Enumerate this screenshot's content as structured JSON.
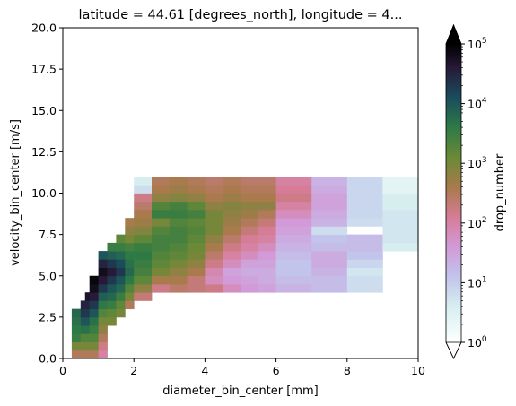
{
  "chart_data": {
    "type": "heatmap",
    "title": "latitude = 44.61 [degrees_north], longitude = 4...",
    "xlabel": "diameter_bin_center [mm]",
    "ylabel": "velocity_bin_center [m/s]",
    "xlim": [
      0,
      10
    ],
    "ylim": [
      0,
      20
    ],
    "xticks": [
      0,
      2,
      4,
      6,
      8,
      10
    ],
    "xtick_labels": [
      "0",
      "2",
      "4",
      "6",
      "8",
      "10"
    ],
    "yticks": [
      0,
      2.5,
      5,
      7.5,
      10,
      12.5,
      15,
      17.5,
      20
    ],
    "ytick_labels": [
      "0.0",
      "2.5",
      "5.0",
      "7.5",
      "10.0",
      "12.5",
      "15.0",
      "17.5",
      "20.0"
    ],
    "colorbar": {
      "label": "drop_number",
      "scale": "log",
      "range": [
        1,
        100000
      ],
      "extend": "both",
      "tick_labels": [
        {
          "base": "10",
          "exp": "0"
        },
        {
          "base": "10",
          "exp": "1"
        },
        {
          "base": "10",
          "exp": "2"
        },
        {
          "base": "10",
          "exp": "3"
        },
        {
          "base": "10",
          "exp": "4"
        },
        {
          "base": "10",
          "exp": "5"
        }
      ],
      "colormap_stops": [
        {
          "t": 0.0,
          "color": "#ffffff"
        },
        {
          "t": 0.12,
          "color": "#d6eef0"
        },
        {
          "t": 0.22,
          "color": "#c2c4ec"
        },
        {
          "t": 0.32,
          "color": "#d29ad8"
        },
        {
          "t": 0.42,
          "color": "#d67c96"
        },
        {
          "t": 0.52,
          "color": "#a87a4c"
        },
        {
          "t": 0.62,
          "color": "#6a8a36"
        },
        {
          "t": 0.72,
          "color": "#2e7a46"
        },
        {
          "t": 0.82,
          "color": "#1a4c5c"
        },
        {
          "t": 0.92,
          "color": "#261a38"
        },
        {
          "t": 1.0,
          "color": "#000000"
        }
      ]
    },
    "cells": [
      [
        0.25,
        0.25,
        2.5
      ],
      [
        0.25,
        0.75,
        3
      ],
      [
        0.25,
        1.25,
        3.5
      ],
      [
        0.25,
        1.75,
        3.6
      ],
      [
        0.25,
        2.25,
        3.7
      ],
      [
        0.25,
        2.75,
        3.8
      ],
      [
        0.5,
        0.25,
        2.5
      ],
      [
        0.5,
        0.75,
        3
      ],
      [
        0.5,
        1.25,
        3.3
      ],
      [
        0.5,
        1.75,
        3.7
      ],
      [
        0.5,
        2.25,
        4
      ],
      [
        0.5,
        2.75,
        4.3
      ],
      [
        0.5,
        3.25,
        4.5
      ],
      [
        0.625,
        3.25,
        4.5
      ],
      [
        0.625,
        3.75,
        4.7
      ],
      [
        0.75,
        0.25,
        2.5
      ],
      [
        0.75,
        0.75,
        3
      ],
      [
        0.75,
        1.25,
        3.3
      ],
      [
        0.75,
        1.75,
        3.5
      ],
      [
        0.75,
        2.25,
        3.7
      ],
      [
        0.75,
        2.75,
        4
      ],
      [
        0.75,
        3.25,
        4.3
      ],
      [
        0.75,
        3.75,
        4.6
      ],
      [
        0.75,
        4.25,
        4.8
      ],
      [
        0.75,
        4.75,
        4.9
      ],
      [
        1,
        0.25,
        2
      ],
      [
        1,
        0.75,
        2.2
      ],
      [
        1,
        1.25,
        2.5
      ],
      [
        1,
        1.75,
        2.8
      ],
      [
        1,
        2.25,
        3
      ],
      [
        1,
        2.75,
        3.3
      ],
      [
        1,
        3.25,
        3.6
      ],
      [
        1,
        3.75,
        3.9
      ],
      [
        1,
        4.25,
        4.3
      ],
      [
        1,
        4.75,
        4.6
      ],
      [
        1,
        5.25,
        4.8
      ],
      [
        1,
        5.75,
        4.5
      ],
      [
        1,
        6.25,
        4
      ],
      [
        1.25,
        2.25,
        3
      ],
      [
        1.25,
        2.75,
        3.2
      ],
      [
        1.25,
        3.25,
        3.5
      ],
      [
        1.25,
        3.75,
        3.8
      ],
      [
        1.25,
        4.25,
        4
      ],
      [
        1.25,
        4.75,
        4.3
      ],
      [
        1.25,
        5.25,
        4.6
      ],
      [
        1.25,
        5.75,
        4.3
      ],
      [
        1.25,
        6.25,
        3.9
      ],
      [
        1.25,
        6.75,
        3.5
      ],
      [
        1.5,
        2.75,
        3
      ],
      [
        1.5,
        3.25,
        3.2
      ],
      [
        1.5,
        3.75,
        3.5
      ],
      [
        1.5,
        4.25,
        3.8
      ],
      [
        1.5,
        4.75,
        4
      ],
      [
        1.5,
        5.25,
        4.3
      ],
      [
        1.5,
        5.75,
        4.1
      ],
      [
        1.5,
        6.25,
        3.8
      ],
      [
        1.5,
        6.75,
        3.5
      ],
      [
        1.5,
        7.25,
        3.2
      ],
      [
        1.75,
        3.25,
        2.5
      ],
      [
        1.75,
        3.75,
        3
      ],
      [
        1.75,
        4.25,
        3.3
      ],
      [
        1.75,
        4.75,
        3.6
      ],
      [
        1.75,
        5.25,
        3.8
      ],
      [
        1.75,
        5.75,
        3.7
      ],
      [
        1.75,
        6.25,
        3.6
      ],
      [
        1.75,
        6.75,
        3.4
      ],
      [
        1.75,
        7.25,
        3
      ],
      [
        1.75,
        7.75,
        2.8
      ],
      [
        1.75,
        8.25,
        2.6
      ],
      [
        2,
        3.75,
        2.3
      ],
      [
        2,
        4.25,
        2.8
      ],
      [
        2,
        4.75,
        3.2
      ],
      [
        2,
        5.25,
        3.4
      ],
      [
        2,
        5.75,
        3.5
      ],
      [
        2,
        6.25,
        3.6
      ],
      [
        2,
        6.75,
        3.5
      ],
      [
        2,
        7.25,
        3.2
      ],
      [
        2,
        7.75,
        2.9
      ],
      [
        2,
        8.25,
        2.7
      ],
      [
        2,
        8.75,
        2.6
      ],
      [
        2,
        9.25,
        2.4
      ],
      [
        2,
        9.75,
        2.2
      ],
      [
        2,
        10.25,
        0.8
      ],
      [
        2,
        10.75,
        0.6
      ],
      [
        2.5,
        4.25,
        2.2
      ],
      [
        2.5,
        4.75,
        2.6
      ],
      [
        2.5,
        5.25,
        3
      ],
      [
        2.5,
        5.75,
        3.2
      ],
      [
        2.5,
        6.25,
        3.3
      ],
      [
        2.5,
        6.75,
        3.4
      ],
      [
        2.5,
        7.25,
        3.4
      ],
      [
        2.5,
        7.75,
        3.3
      ],
      [
        2.5,
        8.25,
        3
      ],
      [
        2.5,
        8.75,
        3.5
      ],
      [
        2.5,
        9.25,
        3.3
      ],
      [
        2.5,
        9.75,
        2.8
      ],
      [
        2.5,
        10.25,
        2.6
      ],
      [
        2.5,
        10.75,
        2.5
      ],
      [
        3,
        4.25,
        2.4
      ],
      [
        3,
        4.75,
        2.6
      ],
      [
        3,
        5.25,
        2.8
      ],
      [
        3,
        5.75,
        3
      ],
      [
        3,
        6.25,
        3.2
      ],
      [
        3,
        6.75,
        3.3
      ],
      [
        3,
        7.25,
        3.4
      ],
      [
        3,
        7.75,
        3.4
      ],
      [
        3,
        8.25,
        3.3
      ],
      [
        3,
        8.75,
        3.5
      ],
      [
        3,
        9.25,
        3.4
      ],
      [
        3,
        9.75,
        2.9
      ],
      [
        3,
        10.25,
        2.7
      ],
      [
        3,
        10.75,
        2.6
      ],
      [
        3.5,
        4.25,
        2.3
      ],
      [
        3.5,
        4.75,
        2.3
      ],
      [
        3.5,
        5.25,
        2.6
      ],
      [
        3.5,
        5.75,
        2.8
      ],
      [
        3.5,
        6.25,
        3
      ],
      [
        3.5,
        6.75,
        3.1
      ],
      [
        3.5,
        7.25,
        3.2
      ],
      [
        3.5,
        7.75,
        3.3
      ],
      [
        3.5,
        8.25,
        3.2
      ],
      [
        3.5,
        8.75,
        3.4
      ],
      [
        3.5,
        9.25,
        3.2
      ],
      [
        3.5,
        9.75,
        2.8
      ],
      [
        3.5,
        10.25,
        2.6
      ],
      [
        3.5,
        10.75,
        2.5
      ],
      [
        4,
        4.25,
        2.2
      ],
      [
        4,
        4.75,
        1.8
      ],
      [
        4,
        5.25,
        1.9
      ],
      [
        4,
        5.75,
        2.2
      ],
      [
        4,
        6.25,
        2.4
      ],
      [
        4,
        6.75,
        2.6
      ],
      [
        4,
        7.25,
        2.8
      ],
      [
        4,
        7.75,
        3
      ],
      [
        4,
        8.25,
        3
      ],
      [
        4,
        8.75,
        3
      ],
      [
        4,
        9.25,
        2.8
      ],
      [
        4,
        9.75,
        2.6
      ],
      [
        4,
        10.25,
        2.5
      ],
      [
        4,
        10.75,
        2.4
      ],
      [
        4.5,
        4.25,
        1.8
      ],
      [
        4.5,
        4.75,
        1.6
      ],
      [
        4.5,
        5.25,
        1.5
      ],
      [
        4.5,
        5.75,
        1.8
      ],
      [
        4.5,
        6.25,
        2
      ],
      [
        4.5,
        6.75,
        2.2
      ],
      [
        4.5,
        7.25,
        2.4
      ],
      [
        4.5,
        7.75,
        2.6
      ],
      [
        4.5,
        8.25,
        2.7
      ],
      [
        4.5,
        8.75,
        2.8
      ],
      [
        4.5,
        9.25,
        2.9
      ],
      [
        4.5,
        9.75,
        2.7
      ],
      [
        4.5,
        10.25,
        2.6
      ],
      [
        4.5,
        10.75,
        2.5
      ],
      [
        5,
        4.25,
        1.6
      ],
      [
        5,
        4.75,
        1.5
      ],
      [
        5,
        5.25,
        1.4
      ],
      [
        5,
        5.75,
        1.5
      ],
      [
        5,
        6.25,
        1.8
      ],
      [
        5,
        6.75,
        2
      ],
      [
        5,
        7.25,
        2.1
      ],
      [
        5,
        7.75,
        2.3
      ],
      [
        5,
        8.25,
        2.5
      ],
      [
        5,
        8.75,
        2.7
      ],
      [
        5,
        9.25,
        2.8
      ],
      [
        5,
        9.75,
        2.6
      ],
      [
        5,
        10.25,
        2.5
      ],
      [
        5,
        10.75,
        2.4
      ],
      [
        5.5,
        4.25,
        1.5
      ],
      [
        5.5,
        4.75,
        1.4
      ],
      [
        5.5,
        5.25,
        1.4
      ],
      [
        5.5,
        5.75,
        1.5
      ],
      [
        5.5,
        6.25,
        1.6
      ],
      [
        5.5,
        6.75,
        1.8
      ],
      [
        5.5,
        7.25,
        2
      ],
      [
        5.5,
        7.75,
        2.1
      ],
      [
        5.5,
        8.25,
        2.3
      ],
      [
        5.5,
        8.75,
        2.5
      ],
      [
        5.5,
        9.25,
        2.8
      ],
      [
        5.5,
        9.75,
        2.6
      ],
      [
        5.5,
        10.25,
        2.5
      ],
      [
        5.5,
        10.75,
        2.4
      ],
      [
        6,
        4.25,
        1.3
      ],
      [
        6,
        4.75,
        1.2
      ],
      [
        6,
        5.25,
        1.1
      ],
      [
        6,
        5.75,
        1.1
      ],
      [
        6,
        6.25,
        1.2
      ],
      [
        6,
        6.75,
        1.3
      ],
      [
        6,
        7.25,
        1.4
      ],
      [
        6,
        7.75,
        1.5
      ],
      [
        6,
        8.25,
        1.6
      ],
      [
        6,
        8.75,
        1.8
      ],
      [
        6,
        9.25,
        2
      ],
      [
        6,
        9.75,
        2.2
      ],
      [
        6,
        10.25,
        2.1
      ],
      [
        6,
        10.75,
        2
      ],
      [
        7,
        4.25,
        1.2
      ],
      [
        7,
        4.75,
        1.2
      ],
      [
        7,
        5.25,
        1.3
      ],
      [
        7,
        5.75,
        1.4
      ],
      [
        7,
        6.25,
        1.4
      ],
      [
        7,
        6.75,
        1.2
      ],
      [
        7,
        7.25,
        1.1
      ],
      [
        7,
        7.75,
        0.8
      ],
      [
        7,
        8.25,
        1.3
      ],
      [
        7,
        8.75,
        1.4
      ],
      [
        7,
        9.25,
        1.5
      ],
      [
        7,
        9.75,
        1.5
      ],
      [
        7,
        10.25,
        1.4
      ],
      [
        7,
        10.75,
        1.3
      ],
      [
        8,
        4.25,
        0.8
      ],
      [
        8,
        4.75,
        0.8
      ],
      [
        8,
        5.25,
        0.7
      ],
      [
        8,
        5.75,
        0.9
      ],
      [
        8,
        6.25,
        1.1
      ],
      [
        8,
        6.75,
        1.2
      ],
      [
        8,
        7.25,
        1.2
      ],
      [
        8,
        8.25,
        0.8
      ],
      [
        8,
        8.75,
        0.9
      ],
      [
        8,
        9.25,
        0.9
      ],
      [
        8,
        9.75,
        0.9
      ],
      [
        8,
        10.25,
        0.9
      ],
      [
        8,
        10.75,
        0.9
      ],
      [
        9,
        6.75,
        0.6
      ],
      [
        9,
        7.25,
        0.7
      ],
      [
        9,
        7.75,
        0.7
      ],
      [
        9,
        8.25,
        0.7
      ],
      [
        9,
        8.75,
        0.7
      ],
      [
        9,
        9.25,
        0.6
      ],
      [
        9,
        9.75,
        0.6
      ],
      [
        9,
        10.25,
        0.4
      ],
      [
        9,
        10.75,
        0.4
      ]
    ],
    "cells_format": "[x_start_mm, y_center_m_s, log10_drop_number]"
  }
}
